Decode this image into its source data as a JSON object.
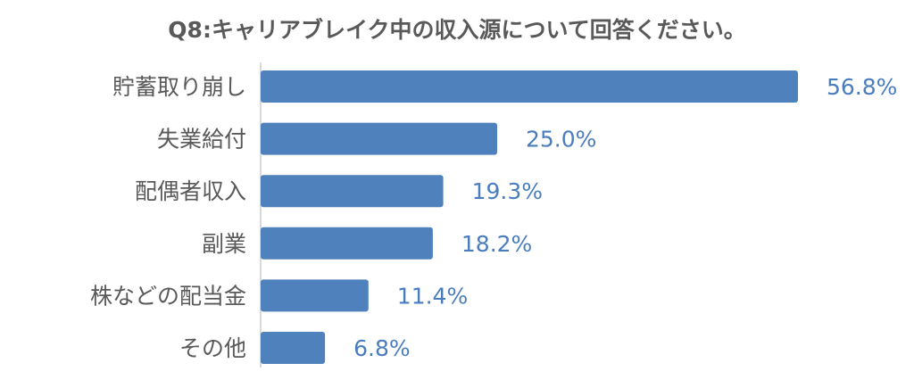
{
  "chart_data": {
    "type": "bar",
    "orientation": "horizontal",
    "title": "Q8:キャリアブレイク中の収入源について回答ください。",
    "categories": [
      "貯蓄取り崩し",
      "失業給付",
      "配偶者収入",
      "副業",
      "株などの配当金",
      "その他"
    ],
    "values": [
      56.8,
      25.0,
      19.3,
      18.2,
      11.4,
      6.8
    ],
    "value_labels": [
      "56.8%",
      "25.0%",
      "19.3%",
      "18.2%",
      "11.4%",
      "6.8%"
    ],
    "unit": "%",
    "xlim": [
      0,
      56.8
    ],
    "bar_color": "#4f81bd",
    "label_color": "#4a7dbd",
    "text_color": "#595959",
    "grid": false,
    "legend": "none"
  }
}
